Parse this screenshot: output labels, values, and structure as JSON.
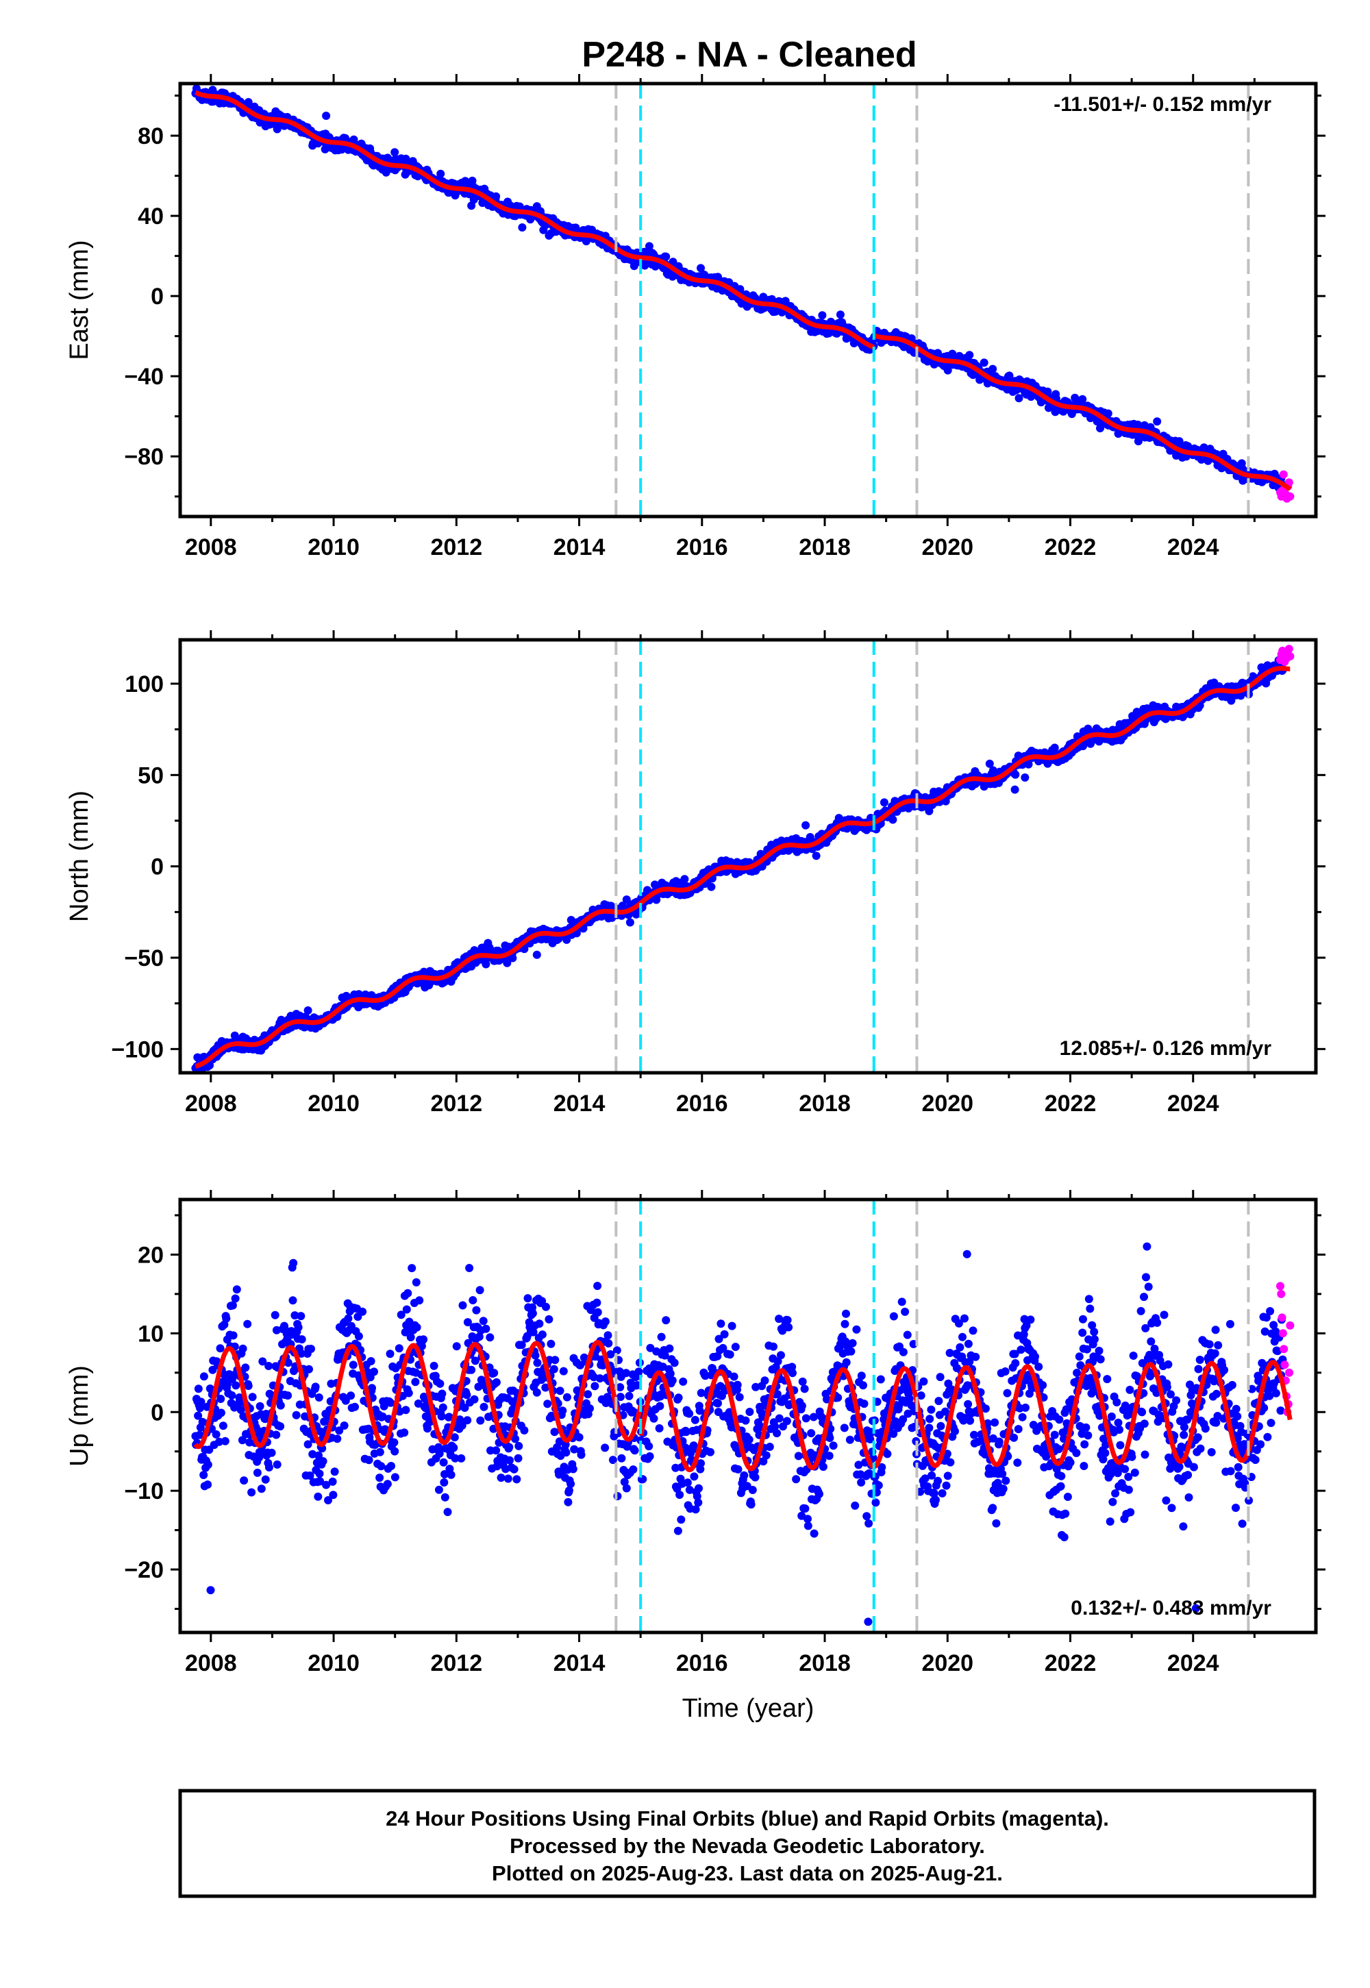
{
  "title": "P248  - NA - Cleaned",
  "colors": {
    "final": "#0000ff",
    "rapid": "#ff00ff",
    "model": "#ff0000",
    "grey_line": "#c0c0c0",
    "cyan_line": "#00e5ff"
  },
  "chart_data": [
    {
      "type": "scatter",
      "ylabel": "East (mm)",
      "xlabel": "",
      "xlim": [
        2007.5,
        2026.0
      ],
      "ylim": [
        -110,
        106
      ],
      "xticks": [
        2008,
        2010,
        2012,
        2014,
        2016,
        2018,
        2020,
        2022,
        2024
      ],
      "yticks": [
        -80,
        -40,
        0,
        40,
        80
      ],
      "ytick_labels": [
        "−80",
        "−40",
        "0",
        "40",
        "80"
      ],
      "rate_label": "-11.501+/- 0.152 mm/yr",
      "rate_position": "top-right",
      "vlines_grey": [
        2014.6,
        2019.5,
        2024.9
      ],
      "vlines_cyan": [
        2015.0,
        2018.8
      ],
      "model": {
        "start": 2007.75,
        "end": 2025.58,
        "y0": 103.0,
        "slope": -11.501,
        "seasonal_amp": 1.5,
        "offsets": [
          {
            "x": 2018.8,
            "dy": 6.0
          }
        ]
      },
      "noise": 1.6,
      "rapid": {
        "start": 2025.42,
        "end": 2025.58,
        "y": [
          -98,
          -100,
          -97,
          -89,
          -96,
          -99,
          -101,
          -95,
          -93,
          -100
        ]
      }
    },
    {
      "type": "scatter",
      "ylabel": "North (mm)",
      "xlabel": "",
      "xlim": [
        2007.5,
        2026.0
      ],
      "ylim": [
        -113,
        124
      ],
      "xticks": [
        2008,
        2010,
        2012,
        2014,
        2016,
        2018,
        2020,
        2022,
        2024
      ],
      "yticks": [
        -100,
        -50,
        0,
        50,
        100
      ],
      "ytick_labels": [
        "−100",
        "−50",
        "0",
        "50",
        "100"
      ],
      "rate_label": "12.085+/- 0.126 mm/yr",
      "rate_position": "bottom-right",
      "vlines_grey": [
        2014.6,
        2019.5,
        2024.9
      ],
      "vlines_cyan": [
        2015.0,
        2018.8
      ],
      "model": {
        "start": 2007.75,
        "end": 2025.58,
        "y0": -107.0,
        "slope": 12.085,
        "seasonal_amp": 2.5,
        "offsets": []
      },
      "noise": 1.8,
      "rapid": {
        "start": 2025.42,
        "end": 2025.58,
        "y": [
          113,
          116,
          118,
          115,
          112,
          117,
          114,
          116,
          119,
          115
        ]
      }
    },
    {
      "type": "scatter",
      "ylabel": "Up (mm)",
      "xlabel": "Time (year)",
      "xlim": [
        2007.5,
        2026.0
      ],
      "ylim": [
        -28,
        27
      ],
      "xticks": [
        2008,
        2010,
        2012,
        2014,
        2016,
        2018,
        2020,
        2022,
        2024
      ],
      "yticks": [
        -20,
        -10,
        0,
        10,
        20
      ],
      "ytick_labels": [
        "−20",
        "−10",
        "0",
        "10",
        "20"
      ],
      "rate_label": "0.132+/- 0.483 mm/yr",
      "rate_position": "bottom-right",
      "vlines_grey": [
        2014.6,
        2019.5,
        2024.9
      ],
      "vlines_cyan": [
        2015.0,
        2018.8
      ],
      "model": {
        "start": 2007.75,
        "end": 2025.58,
        "y0": 1.8,
        "slope": 0.132,
        "seasonal_amp": 6.2,
        "offsets": [
          {
            "x": 2015.0,
            "dy": -4.0
          }
        ]
      },
      "noise": 4.0,
      "rapid": {
        "start": 2025.42,
        "end": 2025.58,
        "y": [
          16,
          15,
          12,
          10,
          8,
          6,
          4,
          2,
          0,
          1,
          5,
          11
        ]
      }
    }
  ],
  "footer": {
    "line1": "24 Hour Positions Using Final Orbits (blue) and Rapid Orbits (magenta).",
    "line2": "Processed by the Nevada Geodetic Laboratory.",
    "line3": "Plotted on 2025-Aug-23. Last data on 2025-Aug-21."
  }
}
